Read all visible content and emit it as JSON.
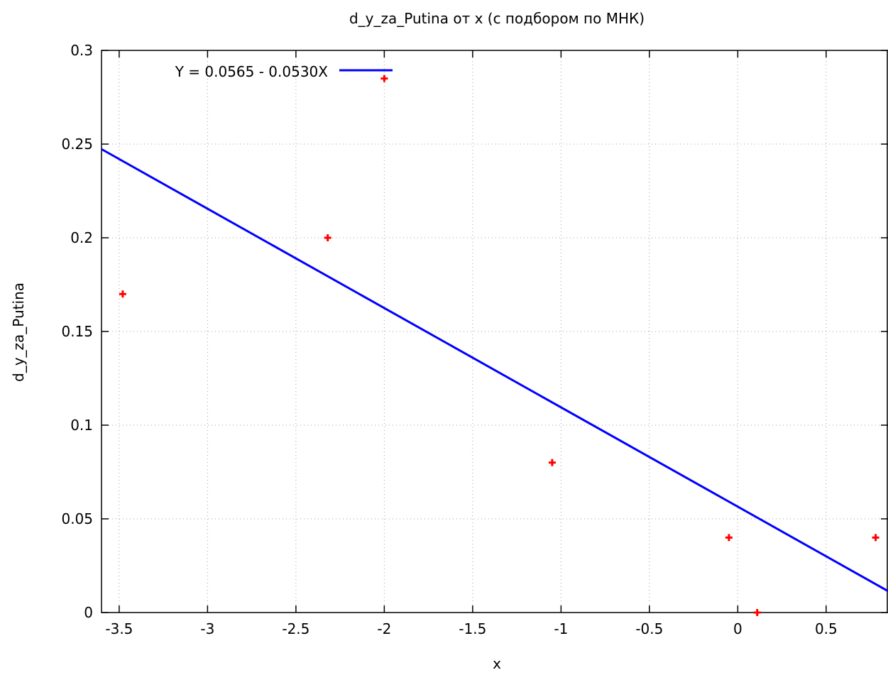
{
  "chart_data": {
    "type": "scatter",
    "title": "d_y_za_Putina от x (с подбором по МНК)",
    "xlabel": "x",
    "ylabel": "d_y_za_Putina",
    "xlim": [
      -3.6,
      0.85
    ],
    "ylim": [
      0,
      0.3
    ],
    "xticks": [
      -3.5,
      -3,
      -2.5,
      -2,
      -1.5,
      -1,
      -0.5,
      0,
      0.5
    ],
    "xtick_labels": [
      "-3.5",
      "-3",
      "-2.5",
      "-2",
      "-1.5",
      "-1",
      "-0.5",
      "0",
      "0.5"
    ],
    "yticks": [
      0,
      0.05,
      0.1,
      0.15,
      0.2,
      0.25,
      0.3
    ],
    "ytick_labels": [
      "0",
      "0.05",
      "0.1",
      "0.15",
      "0.2",
      "0.25",
      "0.3"
    ],
    "grid": true,
    "legend_position": "top-left",
    "points": {
      "color": "#ff0000",
      "x": [
        -3.48,
        -2.32,
        -2.0,
        -1.05,
        -0.05,
        0.11,
        0.78
      ],
      "y": [
        0.17,
        0.2,
        0.285,
        0.08,
        0.04,
        0.0,
        0.04
      ]
    },
    "fit_line": {
      "name": "Y = 0.0565 - 0.0530X",
      "intercept": 0.0565,
      "slope": -0.053,
      "color": "#0000ff"
    }
  }
}
